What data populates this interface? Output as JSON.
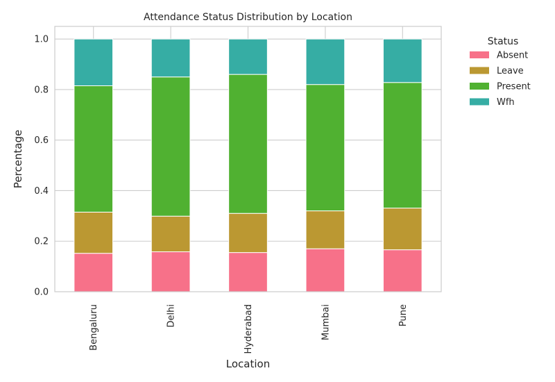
{
  "chart_data": {
    "type": "bar",
    "stacked": true,
    "title": "Attendance Status Distribution by Location",
    "xlabel": "Location",
    "ylabel": "Percentage",
    "ylim": [
      0,
      1.05
    ],
    "yticks": [
      0.0,
      0.2,
      0.4,
      0.6,
      0.8,
      1.0
    ],
    "ytick_labels": [
      "0.0",
      "0.2",
      "0.4",
      "0.6",
      "0.8",
      "1.0"
    ],
    "grid": true,
    "categories": [
      "Bengaluru",
      "Delhi",
      "Hyderabad",
      "Mumbai",
      "Pune"
    ],
    "series": [
      {
        "name": "Absent",
        "color": "#f77189",
        "values": [
          0.152,
          0.158,
          0.155,
          0.17,
          0.166
        ]
      },
      {
        "name": "Leave",
        "color": "#bb9832",
        "values": [
          0.163,
          0.141,
          0.155,
          0.15,
          0.165
        ]
      },
      {
        "name": "Present",
        "color": "#50b131",
        "values": [
          0.5,
          0.551,
          0.55,
          0.5,
          0.497
        ]
      },
      {
        "name": "Wfh",
        "color": "#36ada4",
        "values": [
          0.185,
          0.15,
          0.14,
          0.18,
          0.172
        ]
      }
    ],
    "legend": {
      "title": "Status",
      "placement": "outside-top-right"
    }
  }
}
